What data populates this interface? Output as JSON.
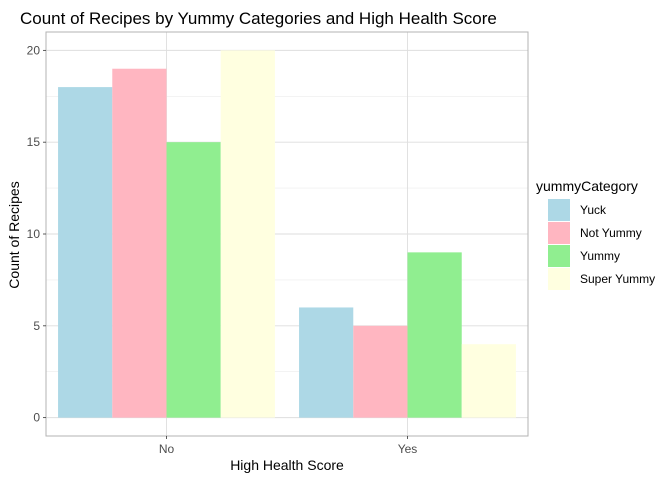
{
  "chart_data": {
    "type": "bar",
    "title": "Count of Recipes by Yummy Categories and High Health Score",
    "xlabel": "High Health Score",
    "ylabel": "Count of Recipes",
    "categories": [
      "No",
      "Yes"
    ],
    "series": [
      {
        "name": "Yuck",
        "color": "#ADD8E6",
        "values": [
          18,
          6
        ]
      },
      {
        "name": "Not Yummy",
        "color": "#FFB6C1",
        "values": [
          19,
          5
        ]
      },
      {
        "name": "Yummy",
        "color": "#90EE90",
        "values": [
          15,
          9
        ]
      },
      {
        "name": "Super Yummy",
        "color": "#FFFFE0",
        "values": [
          20,
          4
        ]
      }
    ],
    "ylim": [
      -1,
      21
    ],
    "yticks": [
      0,
      5,
      10,
      15,
      20
    ],
    "grid": true,
    "legend": {
      "title": "yummyCategory",
      "position": "right"
    }
  }
}
